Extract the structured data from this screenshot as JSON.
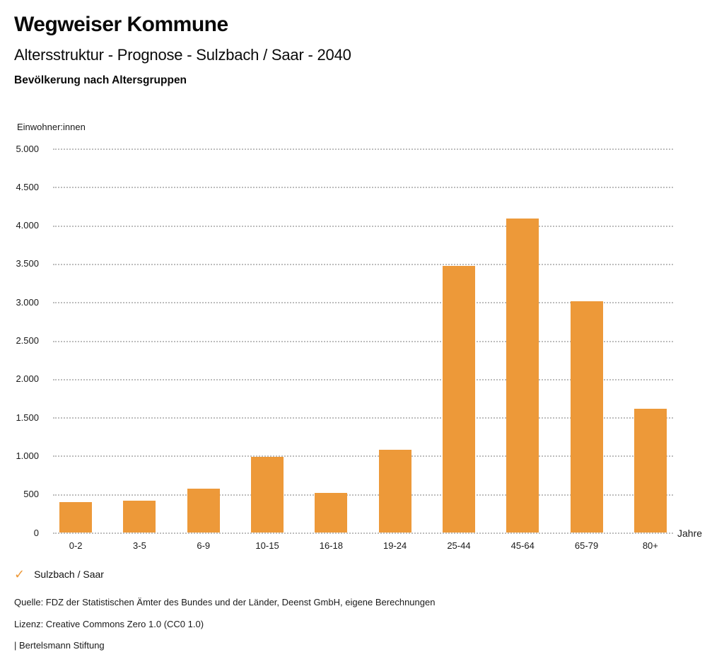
{
  "header": {
    "title": "Wegweiser Kommune",
    "subtitle": "Altersstruktur - Prognose - Sulzbach / Saar - 2040",
    "chart_heading": "Bevölkerung nach Altersgruppen"
  },
  "chart_data": {
    "type": "bar",
    "title": "Bevölkerung nach Altersgruppen",
    "ylabel": "Einwohner:innen",
    "xlabel": "Jahre",
    "categories": [
      "0-2",
      "3-5",
      "6-9",
      "10-15",
      "16-18",
      "19-24",
      "25-44",
      "45-64",
      "65-79",
      "80+"
    ],
    "series": [
      {
        "name": "Sulzbach / Saar",
        "values": [
          400,
          415,
          575,
          985,
          520,
          1080,
          3470,
          4090,
          3010,
          1610
        ]
      }
    ],
    "ylim": [
      0,
      5000
    ],
    "ytick_step": 500,
    "ytick_labels": [
      "0",
      "500",
      "1.000",
      "1.500",
      "2.000",
      "2.500",
      "3.000",
      "3.500",
      "4.000",
      "4.500",
      "5.000"
    ],
    "grid": "horizontal-dotted",
    "legend_position": "bottom-left",
    "bar_color": "#ED9939"
  },
  "legend": {
    "check_icon": "✓",
    "label": "Sulzbach / Saar"
  },
  "footer": {
    "source": "Quelle: FDZ der Statistischen Ämter des Bundes und der Länder, Deenst GmbH, eigene Berechnungen",
    "license": "Lizenz: Creative Commons Zero 1.0 (CC0 1.0)",
    "attribution": "| Bertelsmann Stiftung"
  },
  "colors": {
    "accent_orange": "#ED9939",
    "gridline_gray": "#BDBDBD",
    "text_dark": "#111111"
  }
}
